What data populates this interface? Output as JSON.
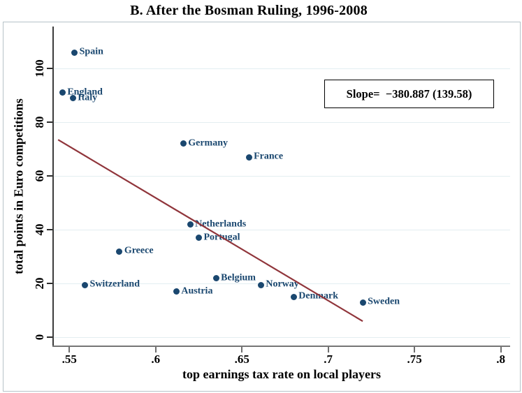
{
  "chart_data": {
    "type": "scatter",
    "title": "B. After the Bosman Ruling, 1996-2008",
    "xlabel": "top earnings tax rate on local players",
    "ylabel": "total points in Euro competitions",
    "xlim": [
      0.5406,
      0.8054
    ],
    "ylim": [
      -3.05,
      115.1
    ],
    "xticks": [
      0.55,
      0.6,
      0.65,
      0.7,
      0.75,
      0.8
    ],
    "xtick_labels": [
      ".55",
      ".6",
      ".65",
      ".7",
      ".75",
      ".8"
    ],
    "yticks": [
      0,
      20,
      40,
      60,
      80,
      100
    ],
    "ytick_labels": [
      "0",
      "20",
      "40",
      "60",
      "80",
      "100"
    ],
    "grid": "horizontal",
    "points": [
      {
        "label": "Spain",
        "x": 0.553,
        "y": 106
      },
      {
        "label": "England",
        "x": 0.546,
        "y": 91
      },
      {
        "label": "Italy",
        "x": 0.552,
        "y": 89
      },
      {
        "label": "Germany",
        "x": 0.616,
        "y": 72
      },
      {
        "label": "France",
        "x": 0.654,
        "y": 67
      },
      {
        "label": "Netherlands",
        "x": 0.62,
        "y": 42
      },
      {
        "label": "Portugal",
        "x": 0.625,
        "y": 37
      },
      {
        "label": "Greece",
        "x": 0.579,
        "y": 32
      },
      {
        "label": "Belgium",
        "x": 0.635,
        "y": 22
      },
      {
        "label": "Switzerland",
        "x": 0.559,
        "y": 19.5
      },
      {
        "label": "Norway",
        "x": 0.661,
        "y": 19.5
      },
      {
        "label": "Austria",
        "x": 0.612,
        "y": 17
      },
      {
        "label": "Denmark",
        "x": 0.68,
        "y": 15
      },
      {
        "label": "Sweden",
        "x": 0.72,
        "y": 13
      }
    ],
    "fit_line": {
      "x1": 0.5435,
      "y1": 73.5,
      "x2": 0.72,
      "y2": 6.0,
      "slope_label": "Slope=  −380.887 (139.58)"
    },
    "colors": {
      "marker": "#1a476f",
      "label": "#1a476f",
      "fit_line": "#90353b",
      "grid": "#e3eef1",
      "y_axis": "#3c3c3c",
      "x_axis": "#757575",
      "border": "#b6c2c8"
    }
  }
}
